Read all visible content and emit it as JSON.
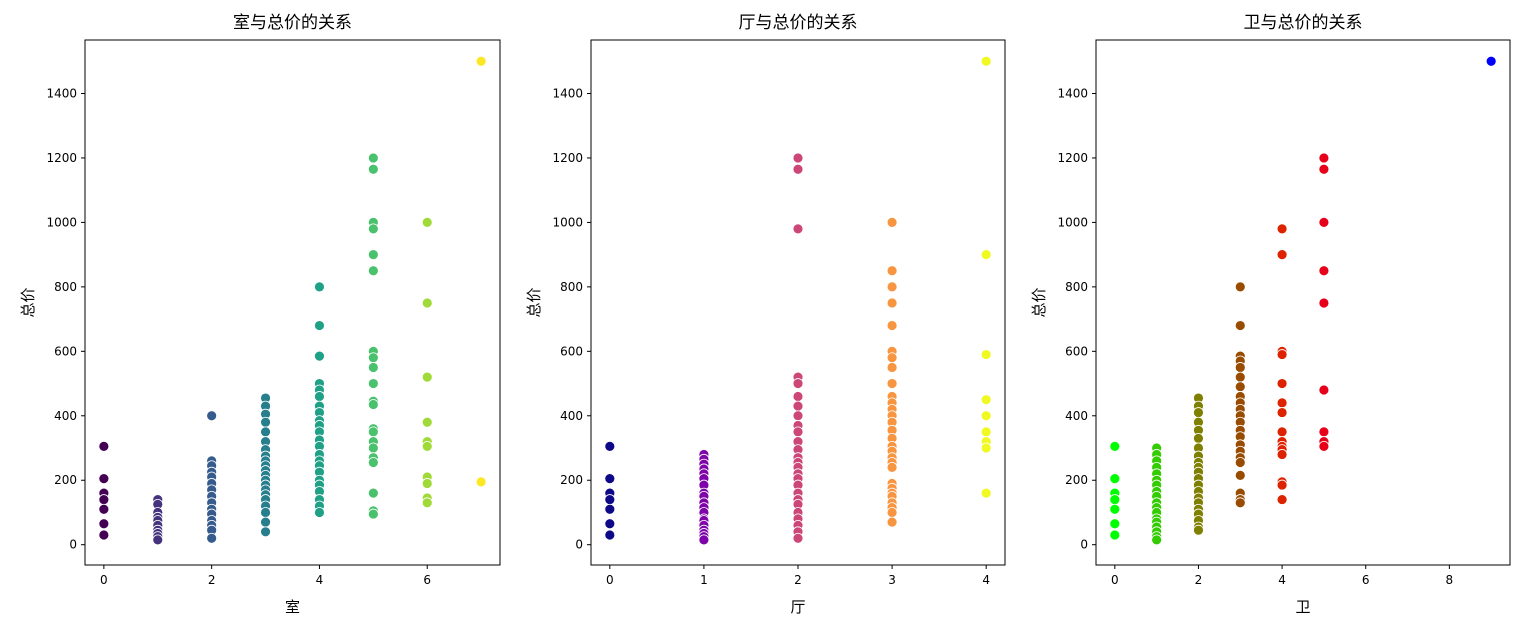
{
  "chart_data": [
    {
      "type": "scatter",
      "title": "室与总价的关系",
      "xlabel": "室",
      "ylabel": "总价",
      "xlim": [
        -0.35,
        7.35
      ],
      "ylim": [
        -63,
        1566
      ],
      "xticks": [
        0,
        2,
        4,
        6
      ],
      "yticks": [
        0,
        200,
        400,
        600,
        800,
        1000,
        1200,
        1400
      ],
      "colors": {
        "0": "#440154",
        "1": "#46337e",
        "2": "#365c8d",
        "3": "#277f8e",
        "4": "#1fa187",
        "5": "#4ac16d",
        "6": "#a0da39",
        "7": "#fde725"
      },
      "points": [
        [
          0,
          305
        ],
        [
          0,
          205
        ],
        [
          0,
          160
        ],
        [
          0,
          140
        ],
        [
          0,
          110
        ],
        [
          0,
          65
        ],
        [
          0,
          30
        ],
        [
          1,
          140
        ],
        [
          1,
          125
        ],
        [
          1,
          100
        ],
        [
          1,
          85
        ],
        [
          1,
          75
        ],
        [
          1,
          60
        ],
        [
          1,
          45
        ],
        [
          1,
          35
        ],
        [
          1,
          25
        ],
        [
          1,
          15
        ],
        [
          2,
          400
        ],
        [
          2,
          260
        ],
        [
          2,
          245
        ],
        [
          2,
          225
        ],
        [
          2,
          210
        ],
        [
          2,
          190
        ],
        [
          2,
          170
        ],
        [
          2,
          150
        ],
        [
          2,
          130
        ],
        [
          2,
          110
        ],
        [
          2,
          95
        ],
        [
          2,
          75
        ],
        [
          2,
          60
        ],
        [
          2,
          45
        ],
        [
          2,
          20
        ],
        [
          3,
          455
        ],
        [
          3,
          430
        ],
        [
          3,
          405
        ],
        [
          3,
          380
        ],
        [
          3,
          350
        ],
        [
          3,
          320
        ],
        [
          3,
          295
        ],
        [
          3,
          275
        ],
        [
          3,
          260
        ],
        [
          3,
          245
        ],
        [
          3,
          230
        ],
        [
          3,
          215
        ],
        [
          3,
          200
        ],
        [
          3,
          185
        ],
        [
          3,
          170
        ],
        [
          3,
          155
        ],
        [
          3,
          140
        ],
        [
          3,
          120
        ],
        [
          3,
          100
        ],
        [
          3,
          70
        ],
        [
          3,
          40
        ],
        [
          4,
          800
        ],
        [
          4,
          680
        ],
        [
          4,
          585
        ],
        [
          4,
          500
        ],
        [
          4,
          480
        ],
        [
          4,
          460
        ],
        [
          4,
          430
        ],
        [
          4,
          410
        ],
        [
          4,
          385
        ],
        [
          4,
          370
        ],
        [
          4,
          350
        ],
        [
          4,
          325
        ],
        [
          4,
          305
        ],
        [
          4,
          280
        ],
        [
          4,
          260
        ],
        [
          4,
          245
        ],
        [
          4,
          225
        ],
        [
          4,
          200
        ],
        [
          4,
          185
        ],
        [
          4,
          165
        ],
        [
          4,
          140
        ],
        [
          4,
          120
        ],
        [
          4,
          100
        ],
        [
          5,
          1200
        ],
        [
          5,
          1165
        ],
        [
          5,
          1000
        ],
        [
          5,
          980
        ],
        [
          5,
          900
        ],
        [
          5,
          850
        ],
        [
          5,
          600
        ],
        [
          5,
          580
        ],
        [
          5,
          550
        ],
        [
          5,
          500
        ],
        [
          5,
          445
        ],
        [
          5,
          435
        ],
        [
          5,
          360
        ],
        [
          5,
          350
        ],
        [
          5,
          320
        ],
        [
          5,
          300
        ],
        [
          5,
          270
        ],
        [
          5,
          255
        ],
        [
          5,
          160
        ],
        [
          5,
          105
        ],
        [
          5,
          95
        ],
        [
          6,
          1000
        ],
        [
          6,
          750
        ],
        [
          6,
          520
        ],
        [
          6,
          380
        ],
        [
          6,
          320
        ],
        [
          6,
          305
        ],
        [
          6,
          210
        ],
        [
          6,
          190
        ],
        [
          6,
          145
        ],
        [
          6,
          130
        ],
        [
          7,
          1500
        ],
        [
          7,
          195
        ]
      ]
    },
    {
      "type": "scatter",
      "title": "厅与总价的关系",
      "xlabel": "厅",
      "ylabel": "总价",
      "xlim": [
        -0.2,
        4.2
      ],
      "ylim": [
        -63,
        1566
      ],
      "xticks": [
        0,
        1,
        2,
        3,
        4
      ],
      "yticks": [
        0,
        200,
        400,
        600,
        800,
        1000,
        1200,
        1400
      ],
      "colors": {
        "0": "#0d0887",
        "1": "#7e03a8",
        "2": "#cc4778",
        "3": "#f89540",
        "4": "#f0f921"
      },
      "points": [
        [
          0,
          305
        ],
        [
          0,
          205
        ],
        [
          0,
          160
        ],
        [
          0,
          140
        ],
        [
          0,
          110
        ],
        [
          0,
          65
        ],
        [
          0,
          30
        ],
        [
          1,
          280
        ],
        [
          1,
          265
        ],
        [
          1,
          250
        ],
        [
          1,
          235
        ],
        [
          1,
          220
        ],
        [
          1,
          205
        ],
        [
          1,
          185
        ],
        [
          1,
          160
        ],
        [
          1,
          150
        ],
        [
          1,
          130
        ],
        [
          1,
          115
        ],
        [
          1,
          100
        ],
        [
          1,
          80
        ],
        [
          1,
          75
        ],
        [
          1,
          60
        ],
        [
          1,
          45
        ],
        [
          1,
          35
        ],
        [
          1,
          25
        ],
        [
          1,
          15
        ],
        [
          2,
          1200
        ],
        [
          2,
          1165
        ],
        [
          2,
          980
        ],
        [
          2,
          520
        ],
        [
          2,
          500
        ],
        [
          2,
          460
        ],
        [
          2,
          430
        ],
        [
          2,
          400
        ],
        [
          2,
          370
        ],
        [
          2,
          350
        ],
        [
          2,
          320
        ],
        [
          2,
          295
        ],
        [
          2,
          270
        ],
        [
          2,
          255
        ],
        [
          2,
          240
        ],
        [
          2,
          220
        ],
        [
          2,
          205
        ],
        [
          2,
          185
        ],
        [
          2,
          160
        ],
        [
          2,
          140
        ],
        [
          2,
          125
        ],
        [
          2,
          100
        ],
        [
          2,
          80
        ],
        [
          2,
          60
        ],
        [
          2,
          40
        ],
        [
          2,
          20
        ],
        [
          3,
          1000
        ],
        [
          3,
          850
        ],
        [
          3,
          800
        ],
        [
          3,
          750
        ],
        [
          3,
          680
        ],
        [
          3,
          600
        ],
        [
          3,
          580
        ],
        [
          3,
          550
        ],
        [
          3,
          500
        ],
        [
          3,
          460
        ],
        [
          3,
          440
        ],
        [
          3,
          420
        ],
        [
          3,
          400
        ],
        [
          3,
          380
        ],
        [
          3,
          355
        ],
        [
          3,
          330
        ],
        [
          3,
          305
        ],
        [
          3,
          290
        ],
        [
          3,
          270
        ],
        [
          3,
          255
        ],
        [
          3,
          240
        ],
        [
          3,
          190
        ],
        [
          3,
          175
        ],
        [
          3,
          160
        ],
        [
          3,
          150
        ],
        [
          3,
          130
        ],
        [
          3,
          115
        ],
        [
          3,
          100
        ],
        [
          3,
          70
        ],
        [
          4,
          1500
        ],
        [
          4,
          900
        ],
        [
          4,
          590
        ],
        [
          4,
          450
        ],
        [
          4,
          400
        ],
        [
          4,
          350
        ],
        [
          4,
          320
        ],
        [
          4,
          300
        ],
        [
          4,
          160
        ]
      ]
    },
    {
      "type": "scatter",
      "title": "卫与总价的关系",
      "xlabel": "卫",
      "ylabel": "总价",
      "xlim": [
        -0.45,
        9.45
      ],
      "ylim": [
        -63,
        1566
      ],
      "xticks": [
        0,
        2,
        4,
        6,
        8
      ],
      "yticks": [
        0,
        200,
        400,
        600,
        800,
        1000,
        1200,
        1400
      ],
      "colors": {
        "0": "#00ff00",
        "1": "#33cc00",
        "2": "#7f7f00",
        "3": "#994c00",
        "4": "#dd2200",
        "5": "#e6001a",
        "9": "#0000ff"
      },
      "points": [
        [
          0,
          305
        ],
        [
          0,
          205
        ],
        [
          0,
          160
        ],
        [
          0,
          140
        ],
        [
          0,
          110
        ],
        [
          0,
          65
        ],
        [
          0,
          30
        ],
        [
          1,
          300
        ],
        [
          1,
          280
        ],
        [
          1,
          260
        ],
        [
          1,
          240
        ],
        [
          1,
          220
        ],
        [
          1,
          200
        ],
        [
          1,
          185
        ],
        [
          1,
          165
        ],
        [
          1,
          150
        ],
        [
          1,
          130
        ],
        [
          1,
          115
        ],
        [
          1,
          100
        ],
        [
          1,
          80
        ],
        [
          1,
          70
        ],
        [
          1,
          55
        ],
        [
          1,
          40
        ],
        [
          1,
          25
        ],
        [
          1,
          15
        ],
        [
          2,
          455
        ],
        [
          2,
          430
        ],
        [
          2,
          410
        ],
        [
          2,
          380
        ],
        [
          2,
          355
        ],
        [
          2,
          330
        ],
        [
          2,
          300
        ],
        [
          2,
          275
        ],
        [
          2,
          255
        ],
        [
          2,
          240
        ],
        [
          2,
          225
        ],
        [
          2,
          205
        ],
        [
          2,
          185
        ],
        [
          2,
          165
        ],
        [
          2,
          145
        ],
        [
          2,
          130
        ],
        [
          2,
          110
        ],
        [
          2,
          95
        ],
        [
          2,
          75
        ],
        [
          2,
          55
        ],
        [
          2,
          45
        ],
        [
          3,
          800
        ],
        [
          3,
          680
        ],
        [
          3,
          585
        ],
        [
          3,
          570
        ],
        [
          3,
          550
        ],
        [
          3,
          520
        ],
        [
          3,
          490
        ],
        [
          3,
          460
        ],
        [
          3,
          440
        ],
        [
          3,
          420
        ],
        [
          3,
          400
        ],
        [
          3,
          380
        ],
        [
          3,
          355
        ],
        [
          3,
          335
        ],
        [
          3,
          310
        ],
        [
          3,
          290
        ],
        [
          3,
          270
        ],
        [
          3,
          255
        ],
        [
          3,
          215
        ],
        [
          3,
          160
        ],
        [
          3,
          140
        ],
        [
          3,
          130
        ],
        [
          4,
          980
        ],
        [
          4,
          900
        ],
        [
          4,
          600
        ],
        [
          4,
          590
        ],
        [
          4,
          500
        ],
        [
          4,
          440
        ],
        [
          4,
          410
        ],
        [
          4,
          350
        ],
        [
          4,
          320
        ],
        [
          4,
          305
        ],
        [
          4,
          295
        ],
        [
          4,
          280
        ],
        [
          4,
          195
        ],
        [
          4,
          185
        ],
        [
          4,
          140
        ],
        [
          5,
          1200
        ],
        [
          5,
          1165
        ],
        [
          5,
          1000
        ],
        [
          5,
          850
        ],
        [
          5,
          750
        ],
        [
          5,
          480
        ],
        [
          5,
          350
        ],
        [
          5,
          320
        ],
        [
          5,
          305
        ],
        [
          9,
          1500
        ]
      ]
    }
  ]
}
